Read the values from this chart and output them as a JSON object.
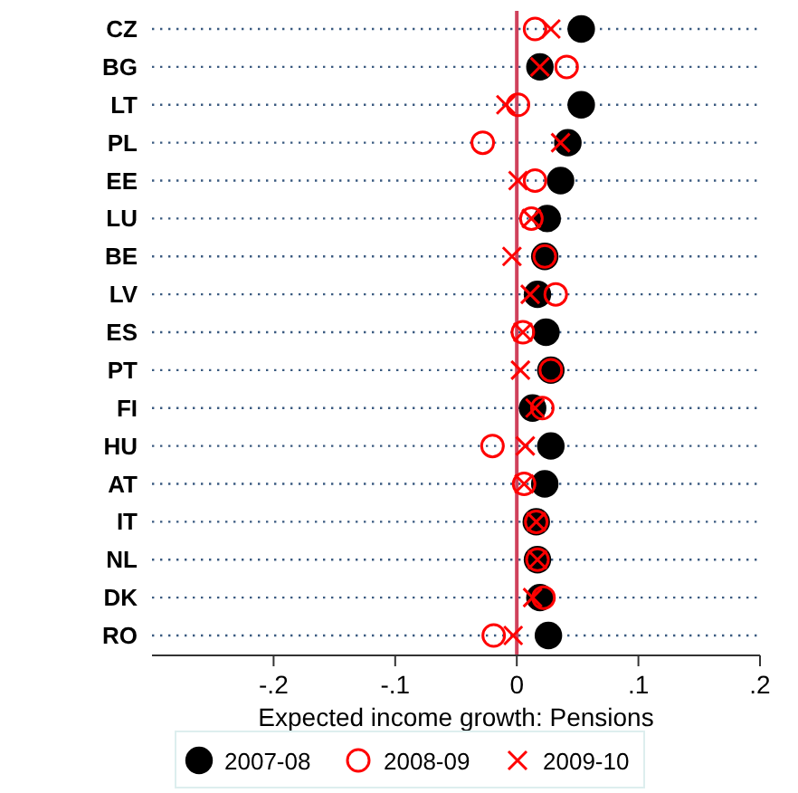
{
  "chart_data": {
    "type": "scatter",
    "orientation": "horizontal",
    "xlabel": "Expected income growth: Pensions",
    "categories": [
      "CZ",
      "BG",
      "LT",
      "PL",
      "EE",
      "LU",
      "BE",
      "LV",
      "ES",
      "PT",
      "FI",
      "HU",
      "AT",
      "IT",
      "NL",
      "DK",
      "RO"
    ],
    "series": [
      {
        "name": "2007-08",
        "color": "#000000",
        "marker": "circle",
        "values": [
          0.053,
          0.019,
          0.053,
          0.042,
          0.036,
          0.025,
          0.023,
          0.017,
          0.024,
          0.028,
          0.013,
          0.028,
          0.023,
          0.016,
          0.017,
          0.019,
          0.026
        ]
      },
      {
        "name": "2008-09",
        "color": "#ff0000",
        "marker": "circle-open",
        "values": [
          0.015,
          0.041,
          0.001,
          -0.028,
          0.015,
          0.012,
          0.023,
          0.032,
          0.005,
          0.028,
          0.021,
          -0.02,
          0.006,
          0.016,
          0.017,
          0.022,
          -0.019
        ]
      },
      {
        "name": "2009-10",
        "color": "#ff0000",
        "marker": "cross",
        "values": [
          0.028,
          0.019,
          -0.009,
          0.036,
          0.001,
          0.012,
          -0.004,
          0.011,
          0.005,
          0.003,
          0.015,
          0.007,
          0.006,
          0.016,
          0.017,
          0.013,
          -0.003
        ]
      }
    ],
    "xlim": [
      -0.3,
      0.2
    ],
    "xticks": [
      {
        "value": -0.2,
        "label": "-.2"
      },
      {
        "value": -0.1,
        "label": "-.1"
      },
      0,
      {
        "value": 0.1,
        "label": ".1"
      },
      {
        "value": 0.2,
        "label": ".2"
      }
    ],
    "ref_lines": [
      {
        "axis": "x",
        "value": 0,
        "color": "#d0415c"
      }
    ],
    "grid": "y",
    "legend": "bottom"
  }
}
